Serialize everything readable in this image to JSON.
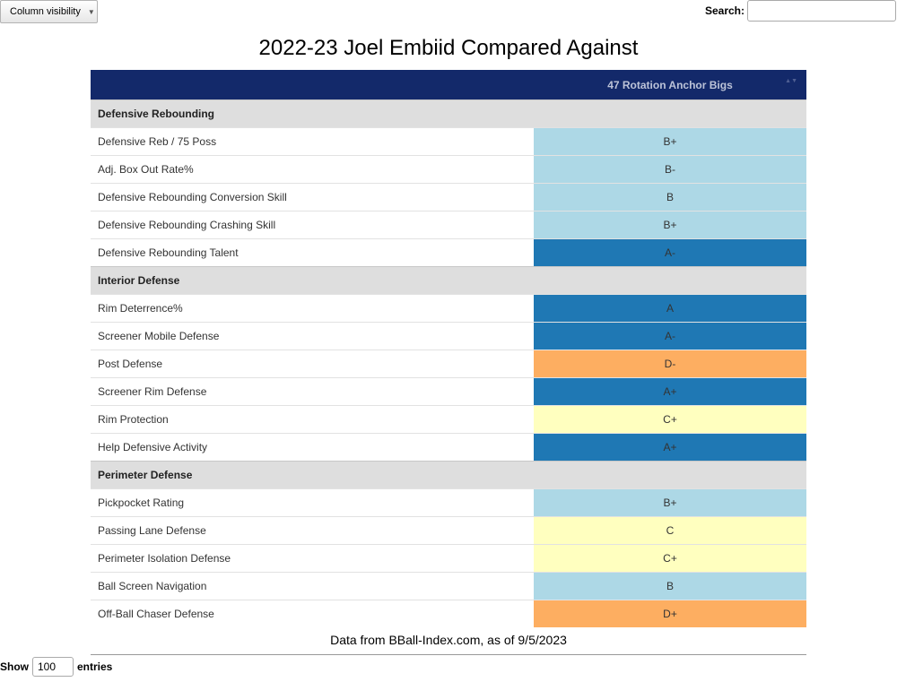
{
  "toolbar": {
    "column_visibility": "Column visibility",
    "caret": "▼"
  },
  "search": {
    "label": "Search:",
    "value": "",
    "placeholder": ""
  },
  "title": "2022-23 Joel Embiid Compared Against",
  "table": {
    "headers": [
      "",
      "47 Rotation Anchor Bigs"
    ],
    "sort_icon": "▲▼",
    "groups": [
      {
        "name": "Defensive Rebounding",
        "rows": [
          {
            "label": "Defensive Reb / 75 Poss",
            "grade": "B+",
            "color": "#add8e6"
          },
          {
            "label": "Adj. Box Out Rate%",
            "grade": "B-",
            "color": "#add8e6"
          },
          {
            "label": "Defensive Rebounding Conversion Skill",
            "grade": "B",
            "color": "#add8e6"
          },
          {
            "label": "Defensive Rebounding Crashing Skill",
            "grade": "B+",
            "color": "#add8e6"
          },
          {
            "label": "Defensive Rebounding Talent",
            "grade": "A-",
            "color": "#1f78b4"
          }
        ]
      },
      {
        "name": "Interior Defense",
        "rows": [
          {
            "label": "Rim Deterrence%",
            "grade": "A",
            "color": "#1f78b4"
          },
          {
            "label": "Screener Mobile Defense",
            "grade": "A-",
            "color": "#1f78b4"
          },
          {
            "label": "Post Defense",
            "grade": "D-",
            "color": "#fdae61"
          },
          {
            "label": "Screener Rim Defense",
            "grade": "A+",
            "color": "#1f78b4"
          },
          {
            "label": "Rim Protection",
            "grade": "C+",
            "color": "#ffffbf"
          },
          {
            "label": "Help Defensive Activity",
            "grade": "A+",
            "color": "#1f78b4"
          }
        ]
      },
      {
        "name": "Perimeter Defense",
        "rows": [
          {
            "label": "Pickpocket Rating",
            "grade": "B+",
            "color": "#add8e6"
          },
          {
            "label": "Passing Lane Defense",
            "grade": "C",
            "color": "#ffffbf"
          },
          {
            "label": "Perimeter Isolation Defense",
            "grade": "C+",
            "color": "#ffffbf"
          },
          {
            "label": "Ball Screen Navigation",
            "grade": "B",
            "color": "#add8e6"
          },
          {
            "label": "Off-Ball Chaser Defense",
            "grade": "D+",
            "color": "#fdae61"
          }
        ]
      }
    ]
  },
  "footnote": "Data from BBall-Index.com, as of 9/5/2023",
  "length_menu": {
    "show": "Show",
    "value": "100",
    "entries": "entries"
  }
}
